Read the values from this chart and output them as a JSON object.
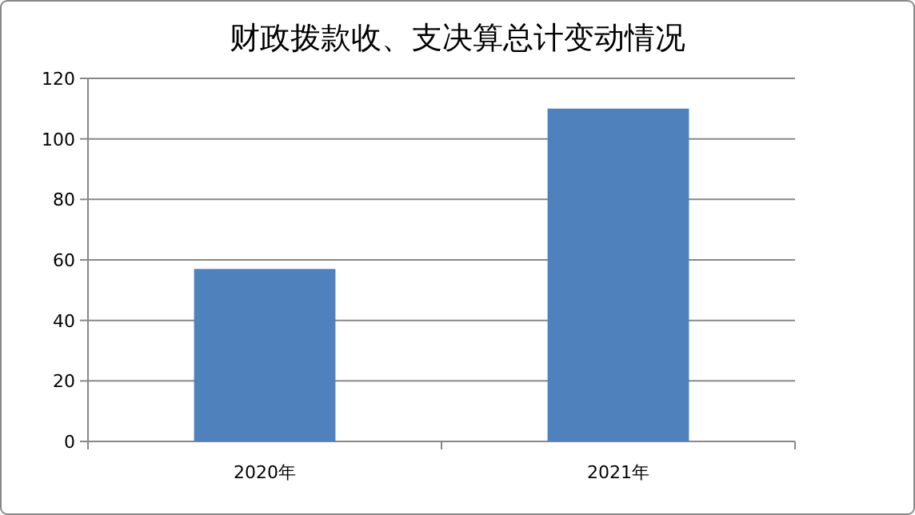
{
  "chart_data": {
    "type": "bar",
    "title": "财政拨款收、支决算总计变动情况",
    "categories": [
      "2020年",
      "2021年"
    ],
    "values": [
      57,
      110
    ],
    "color": "#4f81bd",
    "ylim": [
      0,
      120
    ],
    "yticks": [
      0,
      20,
      40,
      60,
      80,
      100,
      120
    ],
    "grid": "y"
  }
}
